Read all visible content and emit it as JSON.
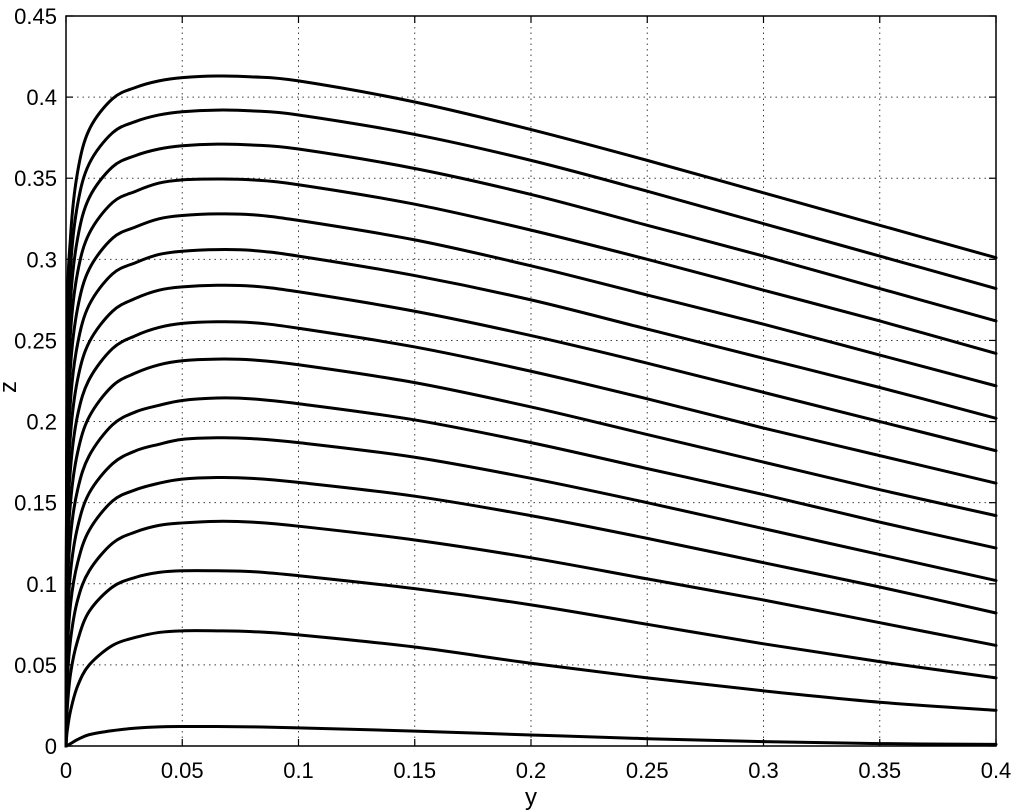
{
  "chart_data": {
    "type": "line",
    "title": "",
    "xlabel": "y",
    "ylabel": "z",
    "xlim": [
      0,
      0.4
    ],
    "ylim": [
      0,
      0.45
    ],
    "grid": true,
    "legend": "none",
    "line_color": "#000000",
    "x_ticks": [
      "0",
      "0.05",
      "0.1",
      "0.15",
      "0.2",
      "0.25",
      "0.3",
      "0.35",
      "0.4"
    ],
    "y_ticks": [
      "0",
      "0.05",
      "0.1",
      "0.15",
      "0.2",
      "0.25",
      "0.3",
      "0.35",
      "0.4",
      "0.45"
    ],
    "x": [
      0,
      0.0005,
      0.002,
      0.005,
      0.01,
      0.02,
      0.03,
      0.04,
      0.05,
      0.065,
      0.08,
      0.1,
      0.15,
      0.2,
      0.25,
      0.3,
      0.35,
      0.4
    ],
    "series": [
      {
        "values": [
          0,
          0.0002,
          0.0015,
          0.004,
          0.007,
          0.0095,
          0.011,
          0.0118,
          0.012,
          0.012,
          0.0118,
          0.0112,
          0.0092,
          0.0068,
          0.0045,
          0.0027,
          0.0015,
          0.001
        ]
      },
      {
        "values": [
          0,
          0.009,
          0.022,
          0.037,
          0.05,
          0.062,
          0.067,
          0.07,
          0.071,
          0.071,
          0.0705,
          0.0685,
          0.061,
          0.051,
          0.042,
          0.034,
          0.027,
          0.022
        ]
      },
      {
        "values": [
          0,
          0.022,
          0.045,
          0.065,
          0.083,
          0.098,
          0.104,
          0.107,
          0.108,
          0.108,
          0.1075,
          0.105,
          0.097,
          0.087,
          0.075,
          0.063,
          0.052,
          0.042
        ]
      },
      {
        "values": [
          0,
          0.038,
          0.066,
          0.09,
          0.108,
          0.125,
          0.132,
          0.136,
          0.1375,
          0.1385,
          0.138,
          0.1355,
          0.127,
          0.116,
          0.103,
          0.09,
          0.076,
          0.062
        ]
      },
      {
        "values": [
          0,
          0.055,
          0.088,
          0.113,
          0.133,
          0.151,
          0.158,
          0.162,
          0.1645,
          0.1655,
          0.165,
          0.1625,
          0.154,
          0.142,
          0.128,
          0.113,
          0.098,
          0.082
        ]
      },
      {
        "values": [
          0,
          0.072,
          0.108,
          0.135,
          0.156,
          0.174,
          0.182,
          0.186,
          0.189,
          0.19,
          0.1895,
          0.187,
          0.178,
          0.165,
          0.15,
          0.134,
          0.118,
          0.102
        ]
      },
      {
        "values": [
          0,
          0.09,
          0.13,
          0.158,
          0.179,
          0.198,
          0.206,
          0.21,
          0.213,
          0.2145,
          0.214,
          0.211,
          0.201,
          0.187,
          0.171,
          0.155,
          0.138,
          0.122
        ]
      },
      {
        "values": [
          0,
          0.108,
          0.151,
          0.181,
          0.203,
          0.222,
          0.23,
          0.235,
          0.2375,
          0.2385,
          0.238,
          0.235,
          0.224,
          0.209,
          0.192,
          0.175,
          0.158,
          0.142
        ]
      },
      {
        "values": [
          0,
          0.126,
          0.172,
          0.204,
          0.226,
          0.245,
          0.253,
          0.258,
          0.2605,
          0.2615,
          0.261,
          0.2575,
          0.246,
          0.231,
          0.214,
          0.196,
          0.179,
          0.162
        ]
      },
      {
        "values": [
          0,
          0.144,
          0.193,
          0.226,
          0.249,
          0.268,
          0.276,
          0.281,
          0.283,
          0.284,
          0.2835,
          0.28,
          0.268,
          0.253,
          0.236,
          0.218,
          0.2,
          0.182
        ]
      },
      {
        "values": [
          0,
          0.162,
          0.214,
          0.248,
          0.272,
          0.291,
          0.298,
          0.303,
          0.305,
          0.306,
          0.3055,
          0.302,
          0.29,
          0.275,
          0.257,
          0.239,
          0.221,
          0.202
        ]
      },
      {
        "values": [
          0,
          0.18,
          0.235,
          0.27,
          0.294,
          0.313,
          0.32,
          0.325,
          0.327,
          0.328,
          0.3275,
          0.324,
          0.312,
          0.296,
          0.278,
          0.26,
          0.241,
          0.222
        ]
      },
      {
        "values": [
          0,
          0.198,
          0.256,
          0.292,
          0.316,
          0.335,
          0.342,
          0.347,
          0.349,
          0.3495,
          0.349,
          0.346,
          0.334,
          0.318,
          0.3,
          0.281,
          0.262,
          0.242
        ]
      },
      {
        "values": [
          0,
          0.216,
          0.276,
          0.313,
          0.338,
          0.357,
          0.364,
          0.368,
          0.37,
          0.371,
          0.3705,
          0.368,
          0.356,
          0.34,
          0.321,
          0.302,
          0.282,
          0.262
        ]
      },
      {
        "values": [
          0,
          0.234,
          0.296,
          0.334,
          0.359,
          0.378,
          0.385,
          0.389,
          0.391,
          0.392,
          0.3915,
          0.389,
          0.377,
          0.361,
          0.342,
          0.322,
          0.302,
          0.282
        ]
      },
      {
        "values": [
          0,
          0.25,
          0.315,
          0.354,
          0.38,
          0.399,
          0.406,
          0.41,
          0.412,
          0.413,
          0.4125,
          0.41,
          0.397,
          0.38,
          0.361,
          0.341,
          0.321,
          0.301
        ]
      }
    ]
  }
}
